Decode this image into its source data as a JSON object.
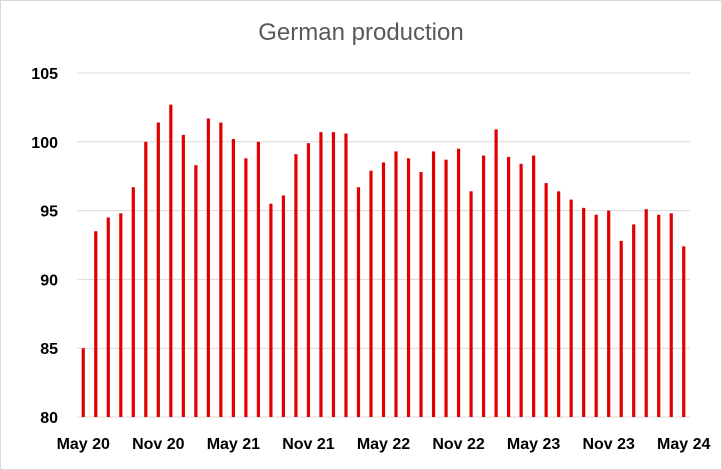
{
  "chart_data": {
    "type": "bar",
    "title": "German production",
    "xlabel": "",
    "ylabel": "",
    "ylim": [
      80,
      105
    ],
    "yticks": [
      80,
      85,
      90,
      95,
      100,
      105
    ],
    "grid": true,
    "bar_color": "#e00000",
    "grid_color": "#d9d9d9",
    "x_tick_labels": [
      "May 20",
      "Nov 20",
      "May 21",
      "Nov 21",
      "May 22",
      "Nov 22",
      "May 23",
      "Nov 23",
      "May 24"
    ],
    "categories": [
      "May 20",
      "Jun 20",
      "Jul 20",
      "Aug 20",
      "Sep 20",
      "Oct 20",
      "Nov 20",
      "Dec 20",
      "Jan 21",
      "Feb 21",
      "Mar 21",
      "Apr 21",
      "May 21",
      "Jun 21",
      "Jul 21",
      "Aug 21",
      "Sep 21",
      "Oct 21",
      "Nov 21",
      "Dec 21",
      "Jan 22",
      "Feb 22",
      "Mar 22",
      "Apr 22",
      "May 22",
      "Jun 22",
      "Jul 22",
      "Aug 22",
      "Sep 22",
      "Oct 22",
      "Nov 22",
      "Dec 22",
      "Jan 23",
      "Feb 23",
      "Mar 23",
      "Apr 23",
      "May 23",
      "Jun 23",
      "Jul 23",
      "Aug 23",
      "Sep 23",
      "Oct 23",
      "Nov 23",
      "Dec 23",
      "Jan 24",
      "Feb 24",
      "Mar 24",
      "Apr 24",
      "May 24"
    ],
    "values": [
      85.0,
      93.5,
      94.5,
      94.8,
      96.7,
      100.0,
      101.4,
      102.7,
      100.5,
      98.3,
      101.7,
      101.4,
      100.2,
      98.8,
      100.0,
      95.5,
      96.1,
      99.1,
      99.9,
      100.7,
      100.7,
      100.6,
      96.7,
      97.9,
      98.5,
      99.3,
      98.8,
      97.8,
      99.3,
      98.7,
      99.5,
      96.4,
      99.0,
      100.9,
      98.9,
      98.4,
      99.0,
      97.0,
      96.4,
      95.8,
      95.2,
      94.7,
      95.0,
      92.8,
      94.0,
      95.1,
      94.7,
      94.8,
      92.4
    ]
  }
}
